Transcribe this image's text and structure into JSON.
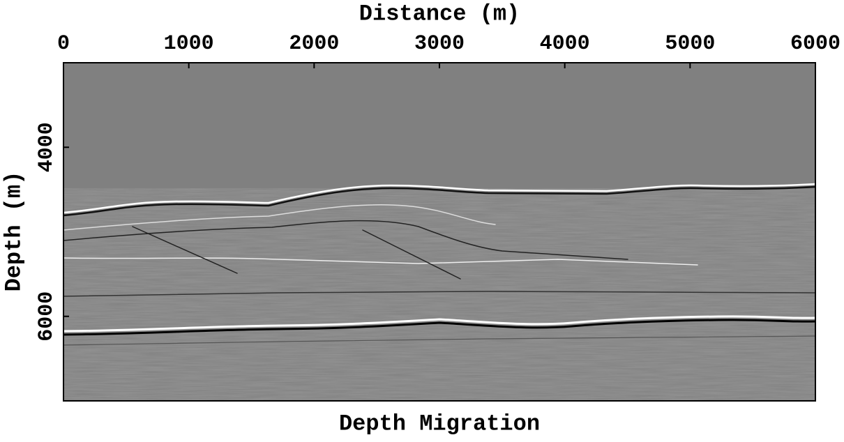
{
  "chart_data": {
    "type": "image",
    "title": "Depth Migration",
    "x_label": "Distance (m)",
    "y_label": "Depth (m)",
    "xlim": [
      0,
      6000
    ],
    "xticks": [
      0,
      1000,
      2000,
      3000,
      4000,
      5000,
      6000
    ],
    "ylim": [
      7000,
      3000
    ],
    "yticks": [
      4000,
      6000
    ]
  }
}
